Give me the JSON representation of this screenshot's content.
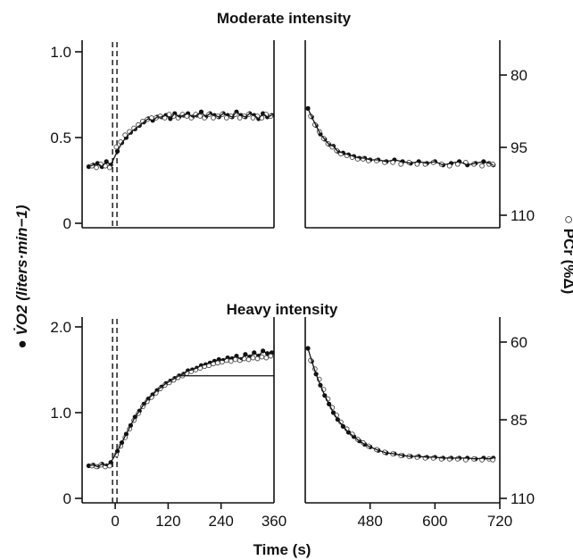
{
  "chart_data": [
    {
      "type": "scatter",
      "title": "Moderate intensity",
      "xlabel": "Time (s)",
      "ylabel_left": "V̇O2 (liters·min−1)",
      "ylabel_right": "PCr (%Δ)",
      "ylim_left": [
        0,
        1.0
      ],
      "ylim_right_inverted": [
        110,
        75
      ],
      "y_ticks_left": [
        "0",
        "0.5",
        "1.0"
      ],
      "y_ticks_right": [
        "80",
        "95",
        "110"
      ],
      "onset_markers_s": [
        -10,
        0
      ],
      "series": [
        {
          "name": "V̇O2 on-transient",
          "marker": "filled",
          "x": [
            -60,
            -50,
            -40,
            -30,
            -20,
            -10,
            5,
            15,
            25,
            35,
            45,
            55,
            65,
            75,
            85,
            95,
            105,
            115,
            125,
            135,
            145,
            155,
            165,
            175,
            185,
            195,
            205,
            215,
            225,
            235,
            245,
            255,
            265,
            275,
            285,
            295,
            305,
            315,
            325,
            335,
            345,
            355
          ],
          "y": [
            0.33,
            0.34,
            0.35,
            0.33,
            0.36,
            0.34,
            0.42,
            0.47,
            0.5,
            0.53,
            0.55,
            0.57,
            0.59,
            0.61,
            0.6,
            0.62,
            0.62,
            0.63,
            0.61,
            0.64,
            0.62,
            0.63,
            0.64,
            0.62,
            0.63,
            0.65,
            0.62,
            0.64,
            0.63,
            0.62,
            0.64,
            0.63,
            0.62,
            0.65,
            0.63,
            0.62,
            0.64,
            0.63,
            0.61,
            0.64,
            0.62,
            0.63
          ]
        },
        {
          "name": "PCr on-transient",
          "marker": "open",
          "x": [
            -55,
            -45,
            -35,
            -25,
            -15,
            0,
            10,
            20,
            30,
            40,
            50,
            60,
            70,
            80,
            90,
            100,
            110,
            120,
            130,
            140,
            150,
            160,
            170,
            180,
            190,
            200,
            210,
            220,
            230,
            240,
            250,
            260,
            270,
            280,
            290,
            300,
            310,
            320,
            330,
            340,
            350
          ],
          "y": [
            0.34,
            0.33,
            0.35,
            0.34,
            0.33,
            0.45,
            0.48,
            0.52,
            0.54,
            0.56,
            0.58,
            0.6,
            0.61,
            0.62,
            0.62,
            0.63,
            0.62,
            0.64,
            0.63,
            0.62,
            0.64,
            0.63,
            0.62,
            0.64,
            0.63,
            0.62,
            0.64,
            0.62,
            0.63,
            0.64,
            0.62,
            0.63,
            0.64,
            0.62,
            0.63,
            0.64,
            0.62,
            0.63,
            0.62,
            0.64,
            0.63
          ]
        },
        {
          "name": "V̇O2 off-transient",
          "marker": "filled",
          "x": [
            365,
            372,
            380,
            388,
            396,
            404,
            412,
            420,
            430,
            440,
            450,
            460,
            470,
            480,
            495,
            510,
            525,
            540,
            555,
            570,
            585,
            600,
            615,
            630,
            645,
            660,
            675,
            690,
            700,
            708
          ],
          "y": [
            0.67,
            0.62,
            0.57,
            0.52,
            0.49,
            0.46,
            0.45,
            0.42,
            0.41,
            0.4,
            0.39,
            0.38,
            0.38,
            0.37,
            0.37,
            0.36,
            0.37,
            0.36,
            0.35,
            0.36,
            0.35,
            0.36,
            0.34,
            0.35,
            0.36,
            0.34,
            0.35,
            0.36,
            0.35,
            0.34
          ]
        },
        {
          "name": "PCr off-transient",
          "marker": "open",
          "x": [
            368,
            376,
            384,
            392,
            400,
            408,
            416,
            424,
            435,
            445,
            455,
            465,
            475,
            490,
            505,
            520,
            535,
            550,
            565,
            580,
            595,
            610,
            625,
            640,
            655,
            670,
            685,
            698,
            705
          ],
          "y": [
            0.63,
            0.58,
            0.54,
            0.5,
            0.47,
            0.45,
            0.43,
            0.41,
            0.4,
            0.39,
            0.38,
            0.38,
            0.37,
            0.37,
            0.36,
            0.36,
            0.35,
            0.36,
            0.35,
            0.35,
            0.36,
            0.35,
            0.34,
            0.35,
            0.36,
            0.35,
            0.34,
            0.35,
            0.35
          ]
        }
      ]
    },
    {
      "type": "scatter",
      "title": "Heavy intensity",
      "xlabel": "Time (s)",
      "ylabel_left": "V̇O2 (liters·min−1)",
      "ylabel_right": "PCr (%Δ)",
      "ylim_left": [
        0,
        2.0
      ],
      "ylim_right_inverted": [
        110,
        55
      ],
      "y_ticks_left": [
        "0",
        "1.0",
        "2.0"
      ],
      "y_ticks_right": [
        "60",
        "85",
        "110"
      ],
      "x_ticks": [
        "0",
        "120",
        "240",
        "360",
        "480",
        "600",
        "720"
      ],
      "onset_markers_s": [
        -10,
        0
      ],
      "series": [
        {
          "name": "V̇O2 on-transient",
          "marker": "filled",
          "x": [
            -60,
            -50,
            -40,
            -30,
            -20,
            -10,
            5,
            15,
            25,
            35,
            45,
            55,
            65,
            75,
            85,
            95,
            105,
            115,
            125,
            135,
            145,
            155,
            165,
            175,
            185,
            195,
            205,
            215,
            225,
            235,
            245,
            255,
            265,
            275,
            285,
            295,
            305,
            315,
            325,
            335,
            345,
            355
          ],
          "y": [
            0.38,
            0.39,
            0.37,
            0.4,
            0.38,
            0.42,
            0.55,
            0.65,
            0.75,
            0.85,
            0.95,
            1.02,
            1.1,
            1.16,
            1.21,
            1.26,
            1.3,
            1.34,
            1.37,
            1.4,
            1.43,
            1.45,
            1.49,
            1.5,
            1.52,
            1.55,
            1.56,
            1.58,
            1.6,
            1.62,
            1.61,
            1.64,
            1.63,
            1.66,
            1.62,
            1.68,
            1.65,
            1.7,
            1.66,
            1.72,
            1.69,
            1.7
          ]
        },
        {
          "name": "PCr on-transient",
          "marker": "open",
          "x": [
            -55,
            -45,
            -35,
            -25,
            -15,
            0,
            10,
            20,
            30,
            40,
            50,
            60,
            70,
            80,
            90,
            100,
            110,
            120,
            130,
            140,
            150,
            160,
            170,
            180,
            190,
            200,
            210,
            220,
            230,
            240,
            250,
            260,
            270,
            280,
            290,
            300,
            310,
            320,
            330,
            340,
            350
          ],
          "y": [
            0.39,
            0.38,
            0.4,
            0.38,
            0.39,
            0.52,
            0.62,
            0.72,
            0.82,
            0.92,
            1.0,
            1.08,
            1.14,
            1.19,
            1.24,
            1.29,
            1.33,
            1.36,
            1.39,
            1.42,
            1.44,
            1.47,
            1.49,
            1.51,
            1.53,
            1.55,
            1.56,
            1.58,
            1.59,
            1.6,
            1.62,
            1.61,
            1.63,
            1.62,
            1.64,
            1.63,
            1.65,
            1.64,
            1.66,
            1.65,
            1.67
          ]
        },
        {
          "name": "V̇O2 off-transient",
          "marker": "filled",
          "x": [
            365,
            372,
            380,
            388,
            396,
            404,
            412,
            420,
            430,
            440,
            450,
            460,
            470,
            480,
            495,
            510,
            525,
            540,
            555,
            570,
            585,
            600,
            615,
            630,
            645,
            660,
            675,
            690,
            700,
            708
          ],
          "y": [
            1.75,
            1.6,
            1.45,
            1.32,
            1.2,
            1.1,
            1.0,
            0.92,
            0.84,
            0.77,
            0.72,
            0.67,
            0.63,
            0.6,
            0.56,
            0.53,
            0.52,
            0.5,
            0.49,
            0.49,
            0.48,
            0.48,
            0.47,
            0.47,
            0.47,
            0.47,
            0.46,
            0.47,
            0.46,
            0.47
          ]
        },
        {
          "name": "PCr off-transient",
          "marker": "open",
          "x": [
            368,
            376,
            384,
            392,
            400,
            408,
            416,
            424,
            435,
            445,
            455,
            465,
            475,
            490,
            505,
            520,
            535,
            550,
            565,
            580,
            595,
            610,
            625,
            640,
            655,
            670,
            685,
            698,
            705
          ],
          "y": [
            1.62,
            1.52,
            1.4,
            1.28,
            1.17,
            1.07,
            0.98,
            0.9,
            0.82,
            0.76,
            0.7,
            0.66,
            0.62,
            0.58,
            0.55,
            0.53,
            0.51,
            0.5,
            0.49,
            0.48,
            0.48,
            0.47,
            0.47,
            0.47,
            0.46,
            0.47,
            0.46,
            0.47,
            0.46
          ]
        }
      ]
    }
  ]
}
